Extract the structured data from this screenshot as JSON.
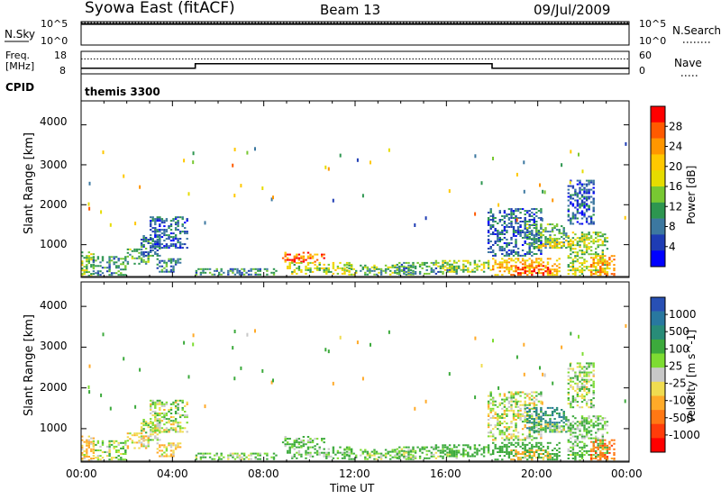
{
  "header": {
    "station": "Syowa East (fitACF)",
    "beam": "Beam 13",
    "date": "09/Jul/2009"
  },
  "noise_panel": {
    "left_label": "N.Sky",
    "right_label": "N.Search",
    "left_ticks": [
      "10^5",
      "10^0"
    ],
    "right_ticks": [
      "10^5",
      "10^0"
    ]
  },
  "freq_panel": {
    "left_label_line1": "Freq.",
    "left_label_line2": "[MHz]",
    "right_label": "Nave",
    "left_ticks": [
      "18",
      "8"
    ],
    "right_ticks": [
      "60",
      "0"
    ]
  },
  "cpid_panel": {
    "label": "CPID",
    "value": "themis 3300"
  },
  "power_panel": {
    "ylabel": "Slant Range [km]",
    "yticks": [
      "4000",
      "3000",
      "2000",
      "1000"
    ],
    "colorbar_label": "Power [dB]",
    "colorbar_ticks": [
      "28",
      "24",
      "20",
      "16",
      "12",
      "8",
      "4"
    ],
    "colorbar_colors": [
      "#ff0000",
      "#ff5a00",
      "#ff9600",
      "#ffc800",
      "#e6dc00",
      "#78c832",
      "#2d9650",
      "#3c78a0",
      "#1e3cb4",
      "#0000ff"
    ]
  },
  "velocity_panel": {
    "ylabel": "Slant Range [km]",
    "yticks": [
      "4000",
      "3000",
      "2000",
      "1000"
    ],
    "colorbar_label": "Velocity [m s^-1]",
    "colorbar_ticks": [
      "1000",
      "500",
      "100",
      "25",
      "-25",
      "-100",
      "-500",
      "-1000"
    ],
    "colorbar_colors": [
      "#2850b4",
      "#2878a0",
      "#288c78",
      "#3caa3c",
      "#7ddc32",
      "#c8c8c8",
      "#f0dc50",
      "#ffaa28",
      "#ff7814",
      "#ff3c0a",
      "#ff0000"
    ]
  },
  "x_axis": {
    "ticks": [
      "00:00",
      "04:00",
      "08:00",
      "12:00",
      "16:00",
      "20:00",
      "00:00"
    ],
    "label": "Time UT"
  },
  "chart_data": {
    "type": "heatmap",
    "x_unit": "hours UT",
    "xlim": [
      0,
      24
    ],
    "ylim": [
      180,
      4600
    ],
    "frequency_mhz": [
      {
        "start": 0,
        "end": 5.0,
        "value": 10.5
      },
      {
        "start": 5.0,
        "end": 18.0,
        "value": 12.5
      },
      {
        "start": 18.0,
        "end": 24,
        "value": 10.5
      }
    ],
    "nave_level": 40,
    "noise_level_log": 4.5,
    "power_db_range": [
      0,
      30
    ],
    "velocity_range": [
      -1000,
      1000
    ],
    "echo_regions": [
      {
        "t0": 0.0,
        "t1": 0.6,
        "r0": 200,
        "r1": 800,
        "power": 14,
        "velocity": -120
      },
      {
        "t0": 0.5,
        "t1": 2.0,
        "r0": 220,
        "r1": 700,
        "power": 10,
        "velocity": 60
      },
      {
        "t0": 2.0,
        "t1": 3.0,
        "r0": 500,
        "r1": 900,
        "power": 12,
        "velocity": -40
      },
      {
        "t0": 2.6,
        "t1": 3.5,
        "r0": 700,
        "r1": 1200,
        "power": 8,
        "velocity": 20
      },
      {
        "t0": 3.0,
        "t1": 4.6,
        "r0": 900,
        "r1": 1700,
        "power": 6,
        "velocity": 15
      },
      {
        "t0": 3.3,
        "t1": 4.3,
        "r0": 300,
        "r1": 650,
        "power": 9,
        "velocity": -60
      },
      {
        "t0": 5.0,
        "t1": 8.5,
        "r0": 230,
        "r1": 400,
        "power": 9,
        "velocity": 80
      },
      {
        "t0": 8.8,
        "t1": 10.6,
        "r0": 550,
        "r1": 800,
        "power": 24,
        "velocity": 150
      },
      {
        "t0": 9.0,
        "t1": 11.8,
        "r0": 250,
        "r1": 550,
        "power": 16,
        "velocity": 130
      },
      {
        "t0": 11.5,
        "t1": 14.5,
        "r0": 230,
        "r1": 500,
        "power": 12,
        "velocity": 110
      },
      {
        "t0": 13.8,
        "t1": 16.5,
        "r0": 250,
        "r1": 550,
        "power": 10,
        "velocity": 90
      },
      {
        "t0": 15.5,
        "t1": 18.0,
        "r0": 300,
        "r1": 600,
        "power": 14,
        "velocity": 200
      },
      {
        "t0": 18.0,
        "t1": 21.0,
        "r0": 220,
        "r1": 650,
        "power": 20,
        "velocity": 300
      },
      {
        "t0": 18.8,
        "t1": 20.6,
        "r0": 220,
        "r1": 450,
        "power": 28,
        "velocity": -150
      },
      {
        "t0": 17.8,
        "t1": 20.2,
        "r0": 700,
        "r1": 1900,
        "power": 7,
        "velocity": 10
      },
      {
        "t0": 19.5,
        "t1": 21.3,
        "r0": 900,
        "r1": 1500,
        "power": 11,
        "velocity": 600
      },
      {
        "t0": 20.0,
        "t1": 21.5,
        "r0": 900,
        "r1": 1100,
        "power": 18,
        "velocity": 20
      },
      {
        "t0": 21.3,
        "t1": 23.1,
        "r0": 200,
        "r1": 1300,
        "power": 15,
        "velocity": 120
      },
      {
        "t0": 22.3,
        "t1": 23.4,
        "r0": 200,
        "r1": 700,
        "power": 22,
        "velocity": -400
      },
      {
        "t0": 21.3,
        "t1": 22.5,
        "r0": 1500,
        "r1": 2600,
        "power": 6,
        "velocity": 40
      }
    ]
  }
}
